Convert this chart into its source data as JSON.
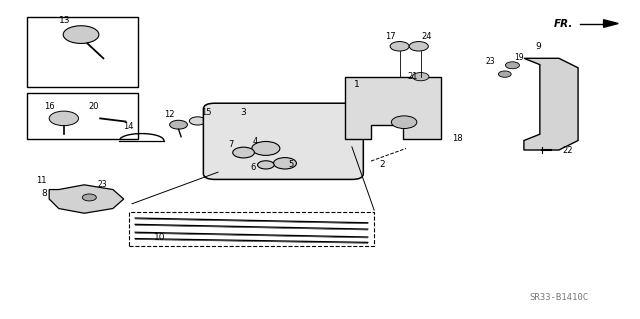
{
  "bg_color": "#ffffff",
  "line_color": "#000000",
  "fig_width": 6.4,
  "fig_height": 3.19,
  "dpi": 100,
  "watermark": "SR33-B1410C",
  "fr_label": "FR."
}
